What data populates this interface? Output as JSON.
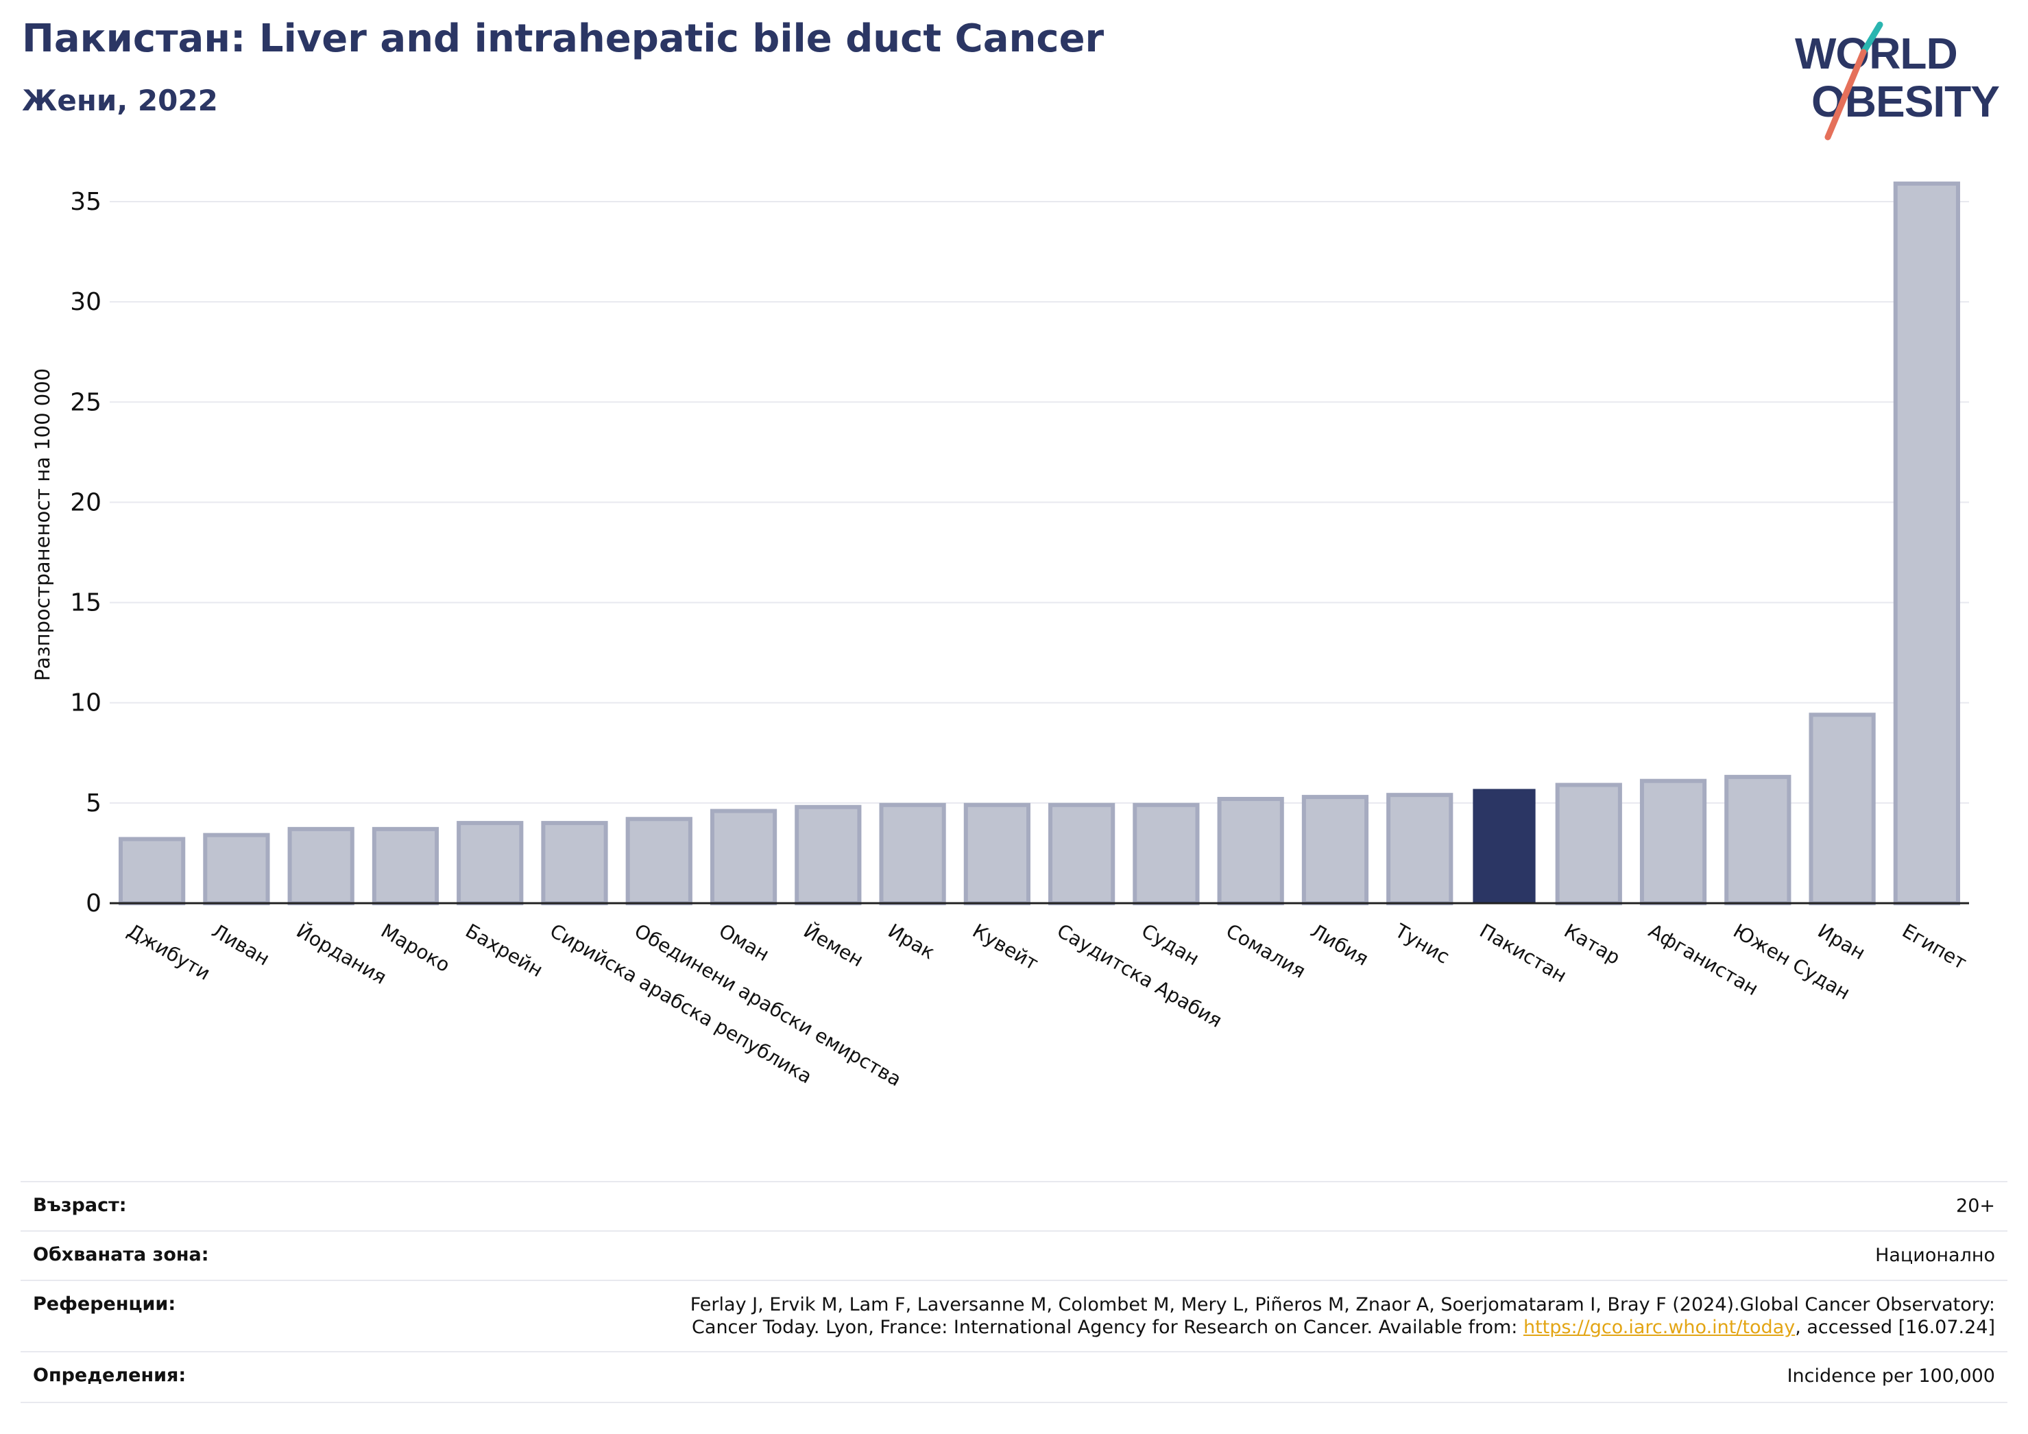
{
  "header": {
    "title": "Пакистан: Liver and intrahepatic bile duct Cancer",
    "subtitle": "Жени, 2022"
  },
  "logo": {
    "line1": "WORLD",
    "line2": "OBESITY",
    "text_color": "#2b3664",
    "slash_teal": "#2ab5b0",
    "slash_coral": "#e5705a"
  },
  "chart_data": {
    "type": "bar",
    "title": "",
    "xlabel": "",
    "ylabel": "Разпространеност  на 100 000",
    "ylim": [
      0,
      37
    ],
    "yticks": [
      0,
      5,
      10,
      15,
      20,
      25,
      30,
      35
    ],
    "grid": true,
    "categories": [
      "Джибути",
      "Ливан",
      "Йордания",
      "Мароко",
      "Бахрейн",
      "Сирийска арабска република",
      "Обединени арабски емирства",
      "Оман",
      "Йемен",
      "Ирак",
      "Кувейт",
      "Саудитска Арабия",
      "Судан",
      "Сомалия",
      "Либия",
      "Тунис",
      "Пакистан",
      "Катар",
      "Афганистан",
      "Южен Судан",
      "Иран",
      "Египет"
    ],
    "values": [
      3.2,
      3.4,
      3.7,
      3.7,
      4.0,
      4.0,
      4.2,
      4.6,
      4.8,
      4.9,
      4.9,
      4.9,
      4.9,
      5.2,
      5.3,
      5.4,
      5.7,
      5.9,
      6.1,
      6.3,
      9.4,
      35.9
    ],
    "highlight": "Пакистан",
    "colors": {
      "highlight": "#2b3664",
      "bar": "#bfc3d0",
      "bar_edge": "#a6abc0",
      "grid": "#e8e9ef"
    }
  },
  "info": {
    "age_label": "Възраст:",
    "age_value": "20+",
    "area_label": "Обхваната зона:",
    "area_value": "Национално",
    "refs_label": "Референции:",
    "refs_line1": "Ferlay J, Ervik M, Lam F, Laversanne M, Colombet M, Mery L, Piñeros M, Znaor A, Soerjomataram I, Bray F (2024).Global Cancer Observatory:",
    "refs_line2_before": "Cancer Today. Lyon, France: International Agency for Research on Cancer. Available from: ",
    "refs_link": "https://gco.iarc.who.int/today",
    "refs_line2_after": ", accessed [16.07.24]",
    "def_label": "Определения:",
    "def_value": "Incidence per 100,000"
  }
}
